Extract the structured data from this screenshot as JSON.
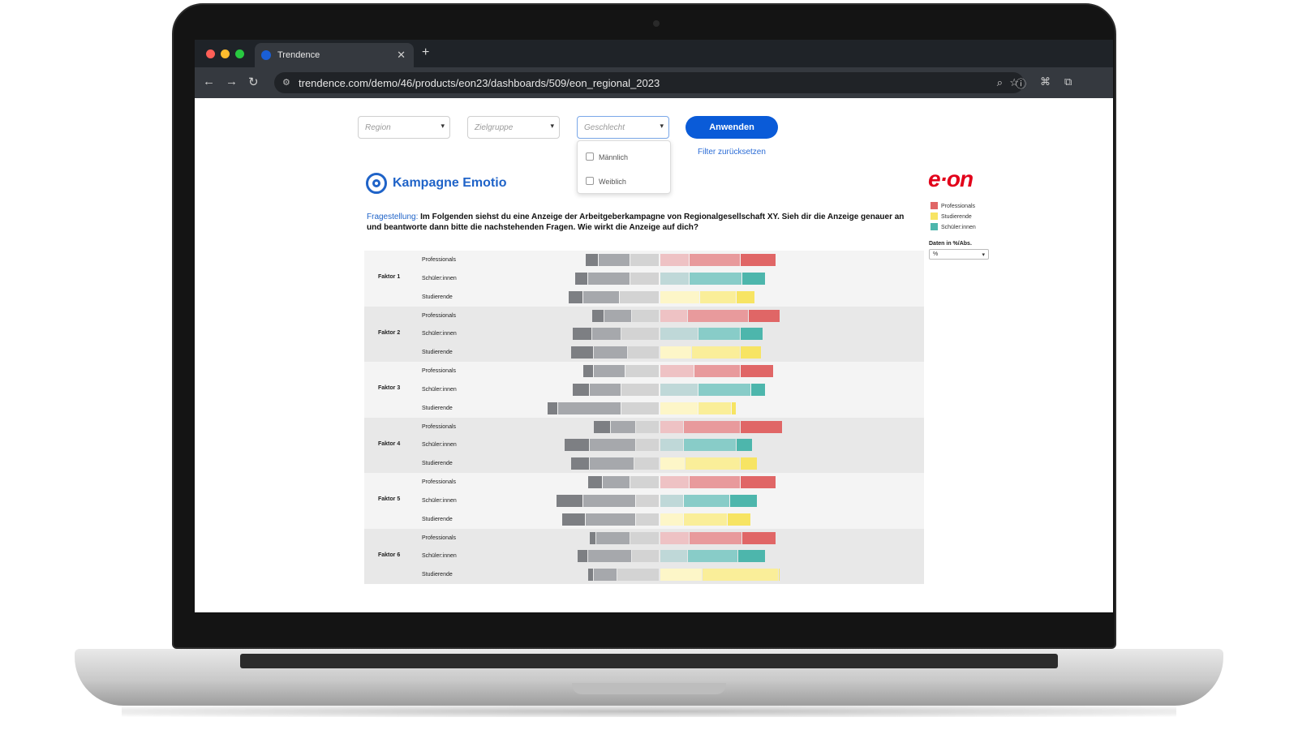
{
  "browser": {
    "tab_title": "Trendence",
    "url": "trendence.com/demo/46/products/eon23/dashboards/509/eon_regional_2023",
    "new_tab_glyph": "+"
  },
  "filters": {
    "region_placeholder": "Region",
    "zielgruppe_placeholder": "Zielgruppe",
    "geschlecht_placeholder": "Geschlecht",
    "options": [
      "Männlich",
      "Weiblich"
    ],
    "apply_label": "Anwenden",
    "reset_label": "Filter zurücksetzen"
  },
  "brand": {
    "title": "Kampagne Emotio",
    "company_logo_text": "e·on"
  },
  "question": {
    "label": "Fragestellung:",
    "text": " Im Folgenden siehst du eine Anzeige der Arbeitgeberkampagne von Regionalgesellschaft XY. Sieh dir die Anzeige genauer an und beantworte dann bitte die nachstehenden Fragen. Wie wirkt die Anzeige auf dich?"
  },
  "legend": [
    {
      "label": "Professionals",
      "color": "#e06666"
    },
    {
      "label": "Studierende",
      "color": "#f7e463"
    },
    {
      "label": "Schüler:innen",
      "color": "#4db6ac"
    }
  ],
  "units": {
    "label": "Daten in %/Abs.",
    "value": "%"
  },
  "colors": {
    "neg_strong": "#7d7f83",
    "neg_mid": "#a6a8ac",
    "neg_light": "#d3d3d3",
    "professionals": [
      "#eec2c4",
      "#e89a9c",
      "#e06666"
    ],
    "schueler": [
      "#bfd8d8",
      "#88ccc8",
      "#4db6ac"
    ],
    "studierende": [
      "#fdf6c8",
      "#faee99",
      "#f7e463"
    ],
    "band_odd": "#f4f4f4",
    "band_even": "#e8e8e8"
  },
  "chart_data": {
    "type": "bar",
    "orientation": "horizontal-diverging",
    "scale": "percent",
    "factors": [
      "Faktor 1",
      "Faktor 2",
      "Faktor 3",
      "Faktor 4",
      "Faktor 5",
      "Faktor 6"
    ],
    "groups": [
      "Professionals",
      "Schüler:innen",
      "Studierende"
    ],
    "series": [
      {
        "factor": "Faktor 1",
        "group": "Professionals",
        "neg": [
          6,
          15,
          14
        ],
        "pos": [
          14,
          24,
          17
        ]
      },
      {
        "factor": "Faktor 1",
        "group": "Schüler:innen",
        "neg": [
          6,
          20,
          14
        ],
        "pos": [
          14,
          25,
          11
        ]
      },
      {
        "factor": "Faktor 1",
        "group": "Studierende",
        "neg": [
          7,
          17,
          19
        ],
        "pos": [
          19,
          17,
          9
        ]
      },
      {
        "factor": "Faktor 2",
        "group": "Professionals",
        "neg": [
          6,
          13,
          13
        ],
        "pos": [
          13,
          29,
          15
        ]
      },
      {
        "factor": "Faktor 2",
        "group": "Schüler:innen",
        "neg": [
          9,
          14,
          18
        ],
        "pos": [
          18,
          20,
          11
        ]
      },
      {
        "factor": "Faktor 2",
        "group": "Studierende",
        "neg": [
          11,
          16,
          15
        ],
        "pos": [
          15,
          23,
          10
        ]
      },
      {
        "factor": "Faktor 3",
        "group": "Professionals",
        "neg": [
          5,
          15,
          16
        ],
        "pos": [
          16,
          22,
          16
        ]
      },
      {
        "factor": "Faktor 3",
        "group": "Schüler:innen",
        "neg": [
          8,
          15,
          18
        ],
        "pos": [
          18,
          25,
          7
        ]
      },
      {
        "factor": "Faktor 3",
        "group": "Studierende",
        "neg": [
          5,
          30,
          18
        ],
        "pos": [
          18,
          16,
          2
        ]
      },
      {
        "factor": "Faktor 4",
        "group": "Professionals",
        "neg": [
          8,
          12,
          11
        ],
        "pos": [
          11,
          27,
          20
        ]
      },
      {
        "factor": "Faktor 4",
        "group": "Schüler:innen",
        "neg": [
          12,
          22,
          11
        ],
        "pos": [
          11,
          25,
          8
        ]
      },
      {
        "factor": "Faktor 4",
        "group": "Studierende",
        "neg": [
          9,
          21,
          12
        ],
        "pos": [
          12,
          26,
          8
        ]
      },
      {
        "factor": "Faktor 5",
        "group": "Professionals",
        "neg": [
          7,
          13,
          14
        ],
        "pos": [
          14,
          24,
          17
        ]
      },
      {
        "factor": "Faktor 5",
        "group": "Schüler:innen",
        "neg": [
          13,
          25,
          11
        ],
        "pos": [
          11,
          22,
          13
        ]
      },
      {
        "factor": "Faktor 5",
        "group": "Studierende",
        "neg": [
          11,
          24,
          11
        ],
        "pos": [
          11,
          21,
          11
        ]
      },
      {
        "factor": "Faktor 6",
        "group": "Professionals",
        "neg": [
          3,
          16,
          14
        ],
        "pos": [
          14,
          25,
          16
        ]
      },
      {
        "factor": "Faktor 6",
        "group": "Schüler:innen",
        "neg": [
          5,
          21,
          13
        ],
        "pos": [
          13,
          24,
          13
        ]
      },
      {
        "factor": "Faktor 6",
        "group": "Studierende",
        "neg": [
          3,
          11,
          20
        ],
        "pos": [
          20,
          36,
          1
        ]
      }
    ]
  }
}
